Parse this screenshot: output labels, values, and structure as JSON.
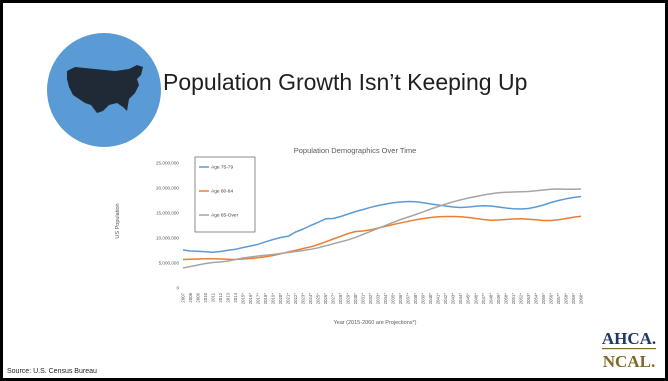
{
  "slide": {
    "title": "Population Growth Isn’t Keeping Up",
    "source": "Source: U.S. Census Bureau",
    "logo_line1": "AHCA.",
    "logo_line2": "NCAL.",
    "colors": {
      "circle": "#5b9bd5",
      "map": "#1f2a36",
      "logo_ahca": "#1f3864",
      "logo_ncal": "#7f6a2a"
    },
    "icons": {
      "usa": "usa-map-icon"
    }
  },
  "chart_data": {
    "type": "line",
    "title": "Population Demographics Over Time",
    "xlabel": "Year (2015-2060 are Projections*)",
    "ylabel": "US Population",
    "ylim": [
      0,
      25000000
    ],
    "yticks": [
      "0",
      "5,000,000",
      "10,000,000",
      "15,000,000",
      "20,000,000",
      "25,000,000"
    ],
    "ytick_values": [
      0,
      5000000,
      10000000,
      15000000,
      20000000,
      25000000
    ],
    "grid": false,
    "legend_position": "top-left",
    "categories": [
      "2007",
      "2008",
      "2009",
      "2010",
      "2011",
      "2012",
      "2013",
      "2014",
      "2015*",
      "2016*",
      "2017*",
      "2018*",
      "2019*",
      "2020*",
      "2021*",
      "2022*",
      "2023*",
      "2024*",
      "2025*",
      "2026*",
      "2027*",
      "2028*",
      "2029*",
      "2030*",
      "2031*",
      "2032*",
      "2033*",
      "2034*",
      "2035*",
      "2036*",
      "2037*",
      "2038*",
      "2039*",
      "2040*",
      "2041*",
      "2042*",
      "2043*",
      "2044*",
      "2045*",
      "2046*",
      "2047*",
      "2048*",
      "2049*",
      "2050*",
      "2051*",
      "2052*",
      "2053*",
      "2054*",
      "2055*",
      "2056*",
      "2057*",
      "2058*",
      "2059*",
      "2060*"
    ],
    "series": [
      {
        "name": "Age 75-79",
        "color": "#5b9bd5",
        "values": [
          7600000,
          7400000,
          7350000,
          7250000,
          7150000,
          7300000,
          7550000,
          7750000,
          8100000,
          8400000,
          8750000,
          9250000,
          9700000,
          10100000,
          10350000,
          11200000,
          11800000,
          12500000,
          13150000,
          13850000,
          13900000,
          14300000,
          14800000,
          15300000,
          15700000,
          16150000,
          16500000,
          16800000,
          17050000,
          17200000,
          17300000,
          17250000,
          17050000,
          16800000,
          16600000,
          16400000,
          16200000,
          16100000,
          16200000,
          16350000,
          16450000,
          16400000,
          16200000,
          16000000,
          15850000,
          15800000,
          15900000,
          16200000,
          16600000,
          17100000,
          17500000,
          17850000,
          18100000,
          18300000
        ]
      },
      {
        "name": "Age 80-84",
        "color": "#ed7d31",
        "values": [
          5700000,
          5750000,
          5800000,
          5850000,
          5850000,
          5800000,
          5750000,
          5700000,
          5800000,
          5900000,
          6050000,
          6250000,
          6500000,
          6850000,
          7200000,
          7550000,
          7900000,
          8250000,
          8700000,
          9250000,
          9800000,
          10350000,
          10900000,
          11300000,
          11400000,
          11650000,
          12000000,
          12350000,
          12700000,
          13050000,
          13350000,
          13650000,
          13900000,
          14100000,
          14250000,
          14300000,
          14300000,
          14250000,
          14100000,
          13900000,
          13700000,
          13550000,
          13600000,
          13700000,
          13800000,
          13850000,
          13750000,
          13650000,
          13500000,
          13500000,
          13650000,
          13900000,
          14150000,
          14350000
        ]
      },
      {
        "name": "Age 85-Over",
        "color": "#a5a5a5",
        "values": [
          4000000,
          4300000,
          4600000,
          4900000,
          5100000,
          5200000,
          5400000,
          5700000,
          6000000,
          6200000,
          6400000,
          6550000,
          6700000,
          6900000,
          7100000,
          7300000,
          7500000,
          7750000,
          8050000,
          8450000,
          8850000,
          9250000,
          9650000,
          10150000,
          10750000,
          11350000,
          11950000,
          12550000,
          13150000,
          13700000,
          14200000,
          14700000,
          15250000,
          15800000,
          16300000,
          16800000,
          17250000,
          17650000,
          18000000,
          18300000,
          18600000,
          18850000,
          19050000,
          19150000,
          19200000,
          19250000,
          19300000,
          19450000,
          19600000,
          19750000,
          19800000,
          19750000,
          19750000,
          19800000
        ]
      }
    ]
  }
}
